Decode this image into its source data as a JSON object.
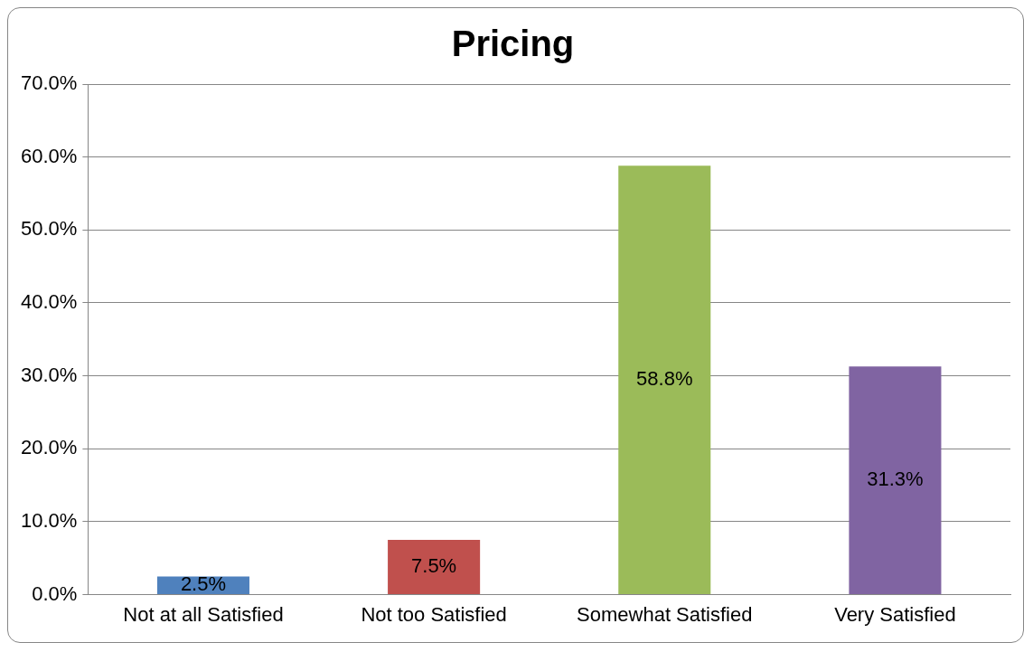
{
  "chart_data": {
    "type": "bar",
    "title": "Pricing",
    "categories": [
      "Not at all Satisfied",
      "Not too Satisfied",
      "Somewhat Satisfied",
      "Very Satisfied"
    ],
    "values": [
      2.5,
      7.5,
      58.8,
      31.3
    ],
    "colors": [
      "#4f81bd",
      "#c0504d",
      "#9bbb59",
      "#8064a2"
    ],
    "value_labels": [
      "2.5%",
      "7.5%",
      "58.8%",
      "31.3%"
    ],
    "ylim": [
      0,
      70
    ],
    "yticks": [
      {
        "value": 0,
        "label": "0.0%"
      },
      {
        "value": 10,
        "label": "10.0%"
      },
      {
        "value": 20,
        "label": "20.0%"
      },
      {
        "value": 30,
        "label": "30.0%"
      },
      {
        "value": 40,
        "label": "40.0%"
      },
      {
        "value": 50,
        "label": "50.0%"
      },
      {
        "value": 60,
        "label": "60.0%"
      },
      {
        "value": 70,
        "label": "70.0%"
      }
    ],
    "grid": "y",
    "legend": false
  }
}
